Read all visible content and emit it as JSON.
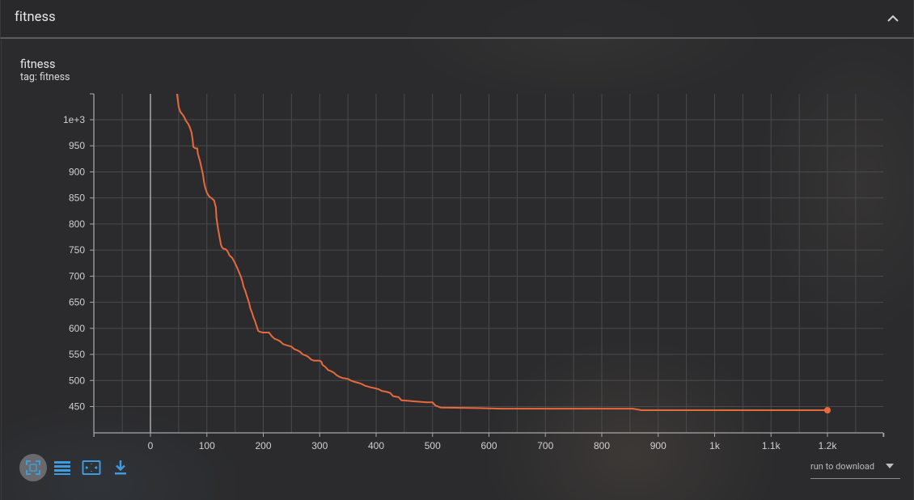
{
  "section": {
    "title": "fitness",
    "collapse_icon": "chevron-up-icon"
  },
  "card": {
    "title": "fitness",
    "tag": "tag: fitness"
  },
  "chart_data": {
    "type": "line",
    "xlabel": "",
    "ylabel": "",
    "xlim": [
      -100,
      1300
    ],
    "ylim": [
      400,
      1050
    ],
    "x_ticks": [
      0,
      100,
      200,
      300,
      400,
      500,
      600,
      700,
      800,
      900,
      1000,
      1100,
      1200
    ],
    "x_tick_labels": [
      "0",
      "100",
      "200",
      "300",
      "400",
      "500",
      "600",
      "700",
      "800",
      "900",
      "1k",
      "1.1k",
      "1.2k"
    ],
    "y_ticks": [
      450,
      500,
      550,
      600,
      650,
      700,
      750,
      800,
      850,
      900,
      950,
      1000
    ],
    "y_tick_labels": [
      "450",
      "500",
      "550",
      "600",
      "650",
      "700",
      "750",
      "800",
      "850",
      "900",
      "950",
      "1e+3"
    ],
    "grid": true,
    "line_color": "#e8693c",
    "series": [
      {
        "name": "",
        "x": [
          47,
          50,
          53,
          57,
          60,
          63,
          67,
          70,
          73,
          75,
          76,
          80,
          83,
          84,
          88,
          91,
          93,
          95,
          97,
          100,
          103,
          105,
          108,
          110,
          113,
          114,
          116,
          117,
          120,
          125,
          127,
          130,
          133,
          135,
          138,
          140,
          145,
          150,
          153,
          155,
          158,
          160,
          163,
          165,
          168,
          170,
          173,
          175,
          177,
          180,
          183,
          185,
          188,
          191,
          195,
          199,
          205,
          210,
          215,
          220,
          225,
          230,
          235,
          240,
          250,
          255,
          260,
          265,
          270,
          275,
          280,
          285,
          290,
          295,
          300,
          303,
          305,
          310,
          315,
          320,
          325,
          330,
          335,
          340,
          350,
          355,
          360,
          370,
          375,
          380,
          390,
          398,
          405,
          410,
          420,
          425,
          430,
          440,
          445,
          490,
          500,
          505,
          515,
          580,
          620,
          700,
          750,
          855,
          860,
          870,
          900,
          1000,
          1100,
          1200
        ],
        "y": [
          1050,
          1025,
          1015,
          1010,
          1005,
          998,
          992,
          985,
          975,
          960,
          948,
          945,
          945,
          935,
          920,
          905,
          895,
          880,
          870,
          860,
          855,
          852,
          850,
          848,
          845,
          840,
          832,
          812,
          790,
          760,
          755,
          752,
          752,
          750,
          745,
          740,
          735,
          725,
          718,
          713,
          705,
          700,
          690,
          680,
          672,
          665,
          655,
          648,
          638,
          630,
          620,
          615,
          605,
          595,
          593,
          592,
          592,
          592,
          585,
          580,
          578,
          575,
          570,
          568,
          565,
          560,
          558,
          555,
          550,
          548,
          545,
          540,
          538,
          538,
          538,
          536,
          530,
          526,
          520,
          518,
          515,
          510,
          507,
          505,
          503,
          500,
          498,
          495,
          493,
          490,
          487,
          485,
          483,
          480,
          478,
          476,
          470,
          468,
          462,
          458,
          458,
          452,
          448,
          447,
          446,
          446,
          446,
          446,
          445,
          443,
          443,
          443,
          443,
          443
        ]
      }
    ],
    "last_point": {
      "x": 1200,
      "y": 443
    }
  },
  "toolbar": {
    "buttons": [
      {
        "name": "fit-to-data-button",
        "icon": "fit-screen-icon",
        "active": true
      },
      {
        "name": "toggle-log-scale-button",
        "icon": "lines-icon",
        "active": false
      },
      {
        "name": "zoom-reset-button",
        "icon": "expand-icon",
        "active": false
      },
      {
        "name": "download-button",
        "icon": "download-icon",
        "active": false
      }
    ],
    "accent_color": "#3f9bde"
  },
  "run_select": {
    "label": "run to download",
    "caret_icon": "caret-down-icon"
  }
}
